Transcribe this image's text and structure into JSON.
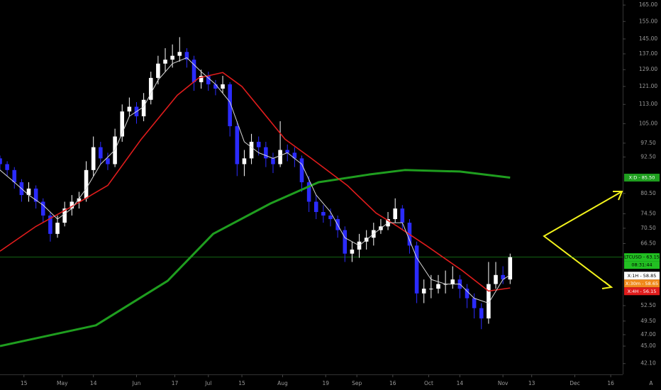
{
  "chart_data": {
    "type": "candlestick",
    "scale": "log",
    "xlim": [
      -10,
      250
    ],
    "ylim": [
      40.4,
      168.2
    ],
    "up_color": "#ffffff",
    "down_color": "#2b2bff",
    "xticks": [
      {
        "value": 0,
        "label": "15"
      },
      {
        "value": 16,
        "label": "May"
      },
      {
        "value": 29,
        "label": "14"
      },
      {
        "value": 47,
        "label": "Jun"
      },
      {
        "value": 63,
        "label": "17"
      },
      {
        "value": 77,
        "label": "Jul"
      },
      {
        "value": 91,
        "label": "15"
      },
      {
        "value": 108,
        "label": "Aug"
      },
      {
        "value": 126,
        "label": "19"
      },
      {
        "value": 139,
        "label": "Sep"
      },
      {
        "value": 154,
        "label": "16"
      },
      {
        "value": 169,
        "label": "Oct"
      },
      {
        "value": 182,
        "label": "14"
      },
      {
        "value": 200,
        "label": "Nov"
      },
      {
        "value": 212,
        "label": "13"
      },
      {
        "value": 230,
        "label": "Dec"
      },
      {
        "value": 245,
        "label": "16"
      }
    ],
    "yticks": [
      {
        "value": 165,
        "label": "165.00"
      },
      {
        "value": 155,
        "label": "155.00"
      },
      {
        "value": 145,
        "label": "145.00"
      },
      {
        "value": 137,
        "label": "137.00"
      },
      {
        "value": 129,
        "label": "129.00"
      },
      {
        "value": 121,
        "label": "121.00"
      },
      {
        "value": 113,
        "label": "113.00"
      },
      {
        "value": 105,
        "label": "105.00"
      },
      {
        "value": 97.5,
        "label": "97.50"
      },
      {
        "value": 92.5,
        "label": "92.50"
      },
      {
        "value": 80.5,
        "label": "80.50"
      },
      {
        "value": 74.5,
        "label": "74.50"
      },
      {
        "value": 70.5,
        "label": "70.50"
      },
      {
        "value": 66.5,
        "label": "66.50"
      },
      {
        "value": 52.5,
        "label": "52.50"
      },
      {
        "value": 49.5,
        "label": "49.50"
      },
      {
        "value": 47,
        "label": "47.00"
      },
      {
        "value": 45,
        "label": "45.00"
      },
      {
        "value": 42.1,
        "label": "42.10"
      }
    ],
    "candles": {
      "x": [
        -10,
        -7,
        -4,
        -1,
        2,
        5,
        8,
        11,
        14,
        17,
        20,
        23,
        26,
        29,
        32,
        35,
        38,
        41,
        44,
        47,
        50,
        53,
        56,
        59,
        62,
        65,
        68,
        71,
        74,
        77,
        80,
        83,
        86,
        89,
        92,
        95,
        98,
        101,
        104,
        107,
        110,
        113,
        116,
        119,
        122,
        125,
        128,
        131,
        134,
        137,
        140,
        143,
        146,
        149,
        152,
        155,
        158,
        161,
        164,
        167,
        170,
        173,
        176,
        179,
        182,
        185,
        188,
        191,
        194,
        197,
        200,
        203
      ],
      "open": [
        92,
        90,
        88,
        84,
        80,
        82,
        78,
        74,
        69,
        72,
        76,
        78,
        79,
        88,
        96,
        92,
        90,
        100,
        110,
        112,
        108,
        115,
        125,
        132,
        134,
        136,
        138,
        134,
        123,
        126,
        122,
        120,
        122,
        104,
        90,
        92,
        98,
        96,
        92,
        90,
        95,
        94,
        92,
        84,
        78,
        75,
        74,
        73,
        70,
        64,
        65,
        67,
        68,
        70,
        71,
        73,
        76,
        72,
        66,
        55,
        56,
        56,
        57,
        57,
        58,
        56,
        54,
        52,
        50,
        57,
        59,
        58
      ],
      "high": [
        93,
        91,
        89,
        85,
        84,
        83,
        79,
        75,
        74,
        78,
        80,
        81,
        91,
        100,
        98,
        94,
        103,
        113,
        116,
        114,
        118,
        128,
        136,
        140,
        142,
        146,
        140,
        136,
        129,
        128,
        124,
        126,
        123,
        106,
        95,
        101,
        100,
        98,
        94,
        106,
        97,
        96,
        93,
        86,
        80,
        77,
        76,
        74,
        71,
        67,
        69,
        70,
        72,
        73,
        75,
        79,
        77,
        73,
        67,
        58,
        59,
        59,
        60,
        61,
        59,
        57,
        55,
        53,
        62,
        62,
        61,
        64
      ],
      "low": [
        88,
        86,
        82,
        78,
        78,
        76,
        72,
        67,
        68,
        71,
        74,
        76,
        78,
        86,
        90,
        88,
        89,
        98,
        108,
        105,
        106,
        113,
        122,
        128,
        130,
        133,
        130,
        119,
        120,
        119,
        117,
        118,
        100,
        86,
        86,
        90,
        93,
        89,
        87,
        89,
        91,
        89,
        81,
        75,
        73,
        72,
        71,
        68,
        62,
        62,
        63,
        65,
        66,
        69,
        70,
        72,
        70,
        64,
        53,
        53,
        54,
        55,
        55,
        56,
        54,
        52,
        50,
        48,
        49,
        56,
        57,
        57
      ],
      "close": [
        90,
        88,
        84,
        80,
        82,
        78,
        74,
        69,
        72,
        76,
        78,
        79,
        88,
        96,
        92,
        90,
        100,
        110,
        112,
        108,
        115,
        125,
        132,
        134,
        136,
        138,
        134,
        123,
        126,
        122,
        120,
        122,
        104,
        90,
        92,
        98,
        96,
        92,
        90,
        95,
        94,
        92,
        84,
        78,
        75,
        74,
        73,
        70,
        64,
        65,
        67,
        68,
        70,
        71,
        73,
        76,
        72,
        66,
        55,
        56,
        56,
        57,
        57,
        58,
        56,
        54,
        52,
        50,
        57,
        59,
        58,
        63.15
      ]
    },
    "series": [
      {
        "color": "#1f9e1f",
        "width": 3,
        "x": [
          -10,
          30,
          60,
          79,
          103,
          123,
          144,
          159,
          182,
          203
        ],
        "values": [
          45,
          48.7,
          57.7,
          69,
          77.5,
          84,
          86.5,
          88,
          87.5,
          85.5
        ]
      },
      {
        "color": "#e01c1c",
        "width": 1.6,
        "x": [
          -10,
          5,
          20,
          35,
          49,
          64,
          73,
          83,
          91,
          109,
          120,
          135,
          147,
          156,
          168,
          183,
          194,
          203
        ],
        "values": [
          64.6,
          71,
          76.6,
          83,
          99,
          117,
          125,
          127.6,
          121,
          99,
          92,
          83,
          74.7,
          71,
          66,
          60,
          55.5,
          56.15
        ]
      },
      {
        "color": "#d8d8d8",
        "width": 1,
        "x": [
          -10,
          -4,
          2,
          8,
          14,
          20,
          26,
          32,
          38,
          44,
          50,
          56,
          62,
          68,
          74,
          80,
          86,
          92,
          98,
          104,
          110,
          116,
          122,
          128,
          134,
          140,
          146,
          152,
          158,
          164,
          170,
          176,
          182,
          188,
          194,
          200,
          203
        ],
        "values": [
          88,
          84,
          80,
          77,
          73,
          76,
          82,
          90,
          95,
          108,
          112,
          124,
          132,
          135,
          128,
          122,
          114,
          98,
          94,
          92,
          94,
          90,
          80,
          75,
          68,
          66,
          69,
          72,
          72,
          63,
          58,
          57,
          57,
          54,
          53,
          58,
          59
        ]
      }
    ],
    "last_price": 63.15,
    "last_price_color": "#1f9e1f",
    "price_labels": [
      {
        "text": "X:D - 85.50",
        "value": 85.5,
        "color": "#1f9e1f",
        "text_color": "#ffffff"
      },
      {
        "text": "LTCUSD - 63.15",
        "value": 63.15,
        "color": "#22c022",
        "text_color": "#000000"
      },
      {
        "text": "X:1H - 58.85",
        "value": 58.85,
        "color": "#ffffff",
        "text_color": "#000000"
      },
      {
        "text": "X:30m - 58.65",
        "value": 58.65,
        "color": "#f08a1c",
        "text_color": "#ffffff"
      },
      {
        "text": "X:4H - 56.15",
        "value": 56.15,
        "color": "#e01c1c",
        "text_color": "#ffffff"
      }
    ],
    "countdown": "08:31:44",
    "auto_button": "A"
  }
}
